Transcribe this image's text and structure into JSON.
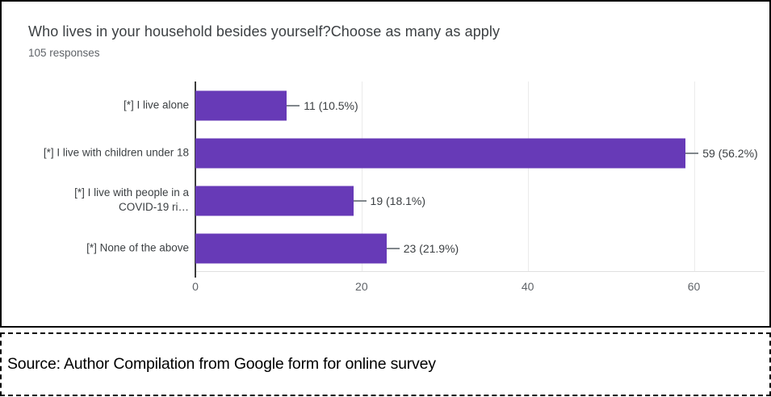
{
  "chart": {
    "title": "Who lives in your household besides yourself?Choose as many as apply",
    "subtitle": "105 responses"
  },
  "chart_data": {
    "type": "bar",
    "orientation": "horizontal",
    "title": "Who lives in your household besides yourself?Choose as many as apply",
    "subtitle": "105 responses",
    "categories": [
      "[*] I live alone",
      "[*] I live with children under 18",
      "[*] I live with people in a\nCOVID-19 ri…",
      "[*] None of the above"
    ],
    "values": [
      11,
      59,
      19,
      23
    ],
    "percentages": [
      10.5,
      56.2,
      18.1,
      21.9
    ],
    "data_labels": [
      "11 (10.5%)",
      "59 (56.2%)",
      "19 (18.1%)",
      "23 (21.9%)"
    ],
    "x_ticks": [
      0,
      20,
      40,
      60
    ],
    "xlim": [
      0,
      68.5
    ],
    "grid": true,
    "legend": "none",
    "bar_color": "#673ab7",
    "gridline_color": "#ebebeb",
    "axis_color": "#3c3c3c"
  },
  "source": {
    "text": "Source: Author Compilation from Google form for online survey"
  }
}
